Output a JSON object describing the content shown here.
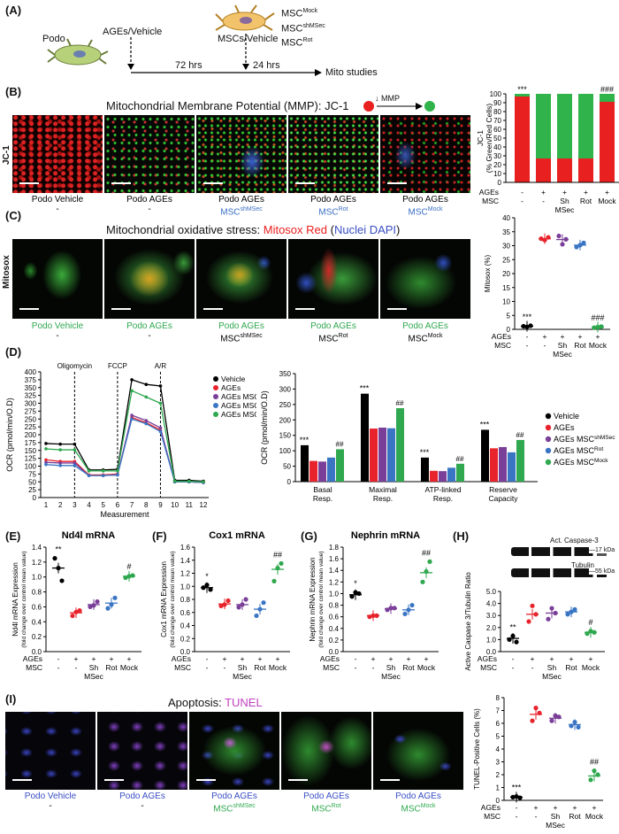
{
  "panelA": {
    "label": "(A)",
    "podo": "Podo",
    "ages_vehicle": "AGEs/Vehicle",
    "mscs_vehicle": "MSCs/Vehicle",
    "msc_mock": "MSC",
    "msc_mock_sup": "Mock",
    "msc_shmsec": "MSC",
    "msc_shmsec_sup": "shMSec",
    "msc_rot": "MSC",
    "msc_rot_sup": "Rot",
    "t72": "72 hrs",
    "t24": "24 hrs",
    "mito": "Mito studies"
  },
  "panelB": {
    "label": "(B)",
    "title": "Mitochondrial Membrane Potential (MMP): JC-1",
    "mmp": "↓ MMP",
    "side": "JC-1",
    "captions": [
      {
        "l1": "Podo Vehicle",
        "l2": "-",
        "sup": ""
      },
      {
        "l1": "Podo AGEs",
        "l2": "-",
        "sup": ""
      },
      {
        "l1": "Podo  AGEs",
        "l2": "MSC",
        "sup": "shMSec"
      },
      {
        "l1": "Podo AGEs",
        "l2": "MSC",
        "sup": "Rot"
      },
      {
        "l1": "Podo AGEs",
        "l2": "MSC",
        "sup": "Mock"
      }
    ]
  },
  "panelC": {
    "label": "(C)",
    "title_a": "Mitochondrial oxidative stress: ",
    "title_b": "Mitosox Red",
    "title_c": " (",
    "title_d": "Nuclei DAPI",
    "title_e": ")",
    "side": "Mitosox",
    "captions": [
      {
        "l1": "Podo Vehicle",
        "l2": "-",
        "sup": ""
      },
      {
        "l1": "Podo AGEs",
        "l2": "-",
        "sup": ""
      },
      {
        "l1": "Podo  AGEs",
        "l2": "MSC",
        "sup": "shMSec"
      },
      {
        "l1": "Podo AGEs",
        "l2": "MSC",
        "sup": "Rot"
      },
      {
        "l1": "Podo AGEs",
        "l2": "MSC",
        "sup": "Mock"
      }
    ]
  },
  "panelI": {
    "label": "(I)",
    "title_a": "Apoptosis: ",
    "title_b": "TUNEL",
    "captions": [
      {
        "l1": "Podo Vehicle",
        "l2": "-",
        "sup": ""
      },
      {
        "l1": "Podo AGEs",
        "l2": "-",
        "sup": ""
      },
      {
        "l1": "Podo  AGEs",
        "l2": "MSC",
        "sup": "shMSec"
      },
      {
        "l1": "Podo AGEs",
        "l2": "MSC",
        "sup": "Rot"
      },
      {
        "l1": "Podo AGEs",
        "l2": "MSC",
        "sup": "Mock"
      }
    ]
  },
  "panelD": {
    "label": "(D)"
  },
  "panelE": {
    "label": "(E)"
  },
  "panelF": {
    "label": "(F)"
  },
  "panelG": {
    "label": "(G)"
  },
  "panelH": {
    "label": "(H)",
    "blot1": "Act. Caspase-3",
    "blot1_kda": "17 kDa",
    "blot2": "Tubulin",
    "blot2_kda": "55 kDa"
  },
  "groups": {
    "ages_row": [
      "-",
      "+",
      "+",
      "+",
      "+"
    ],
    "msc_row": [
      "-",
      "-",
      "Sh",
      "Rot",
      "Mock"
    ],
    "row_ages_label": "AGEs",
    "row_msc_label": "MSC",
    "msec": "MSec"
  },
  "colors": {
    "vehicle": "#000000",
    "ages": "#e8232b",
    "shmsec": "#7a3f98",
    "rot": "#3a75c4",
    "mock": "#2fa84f",
    "jc_red": "#e82020",
    "jc_green": "#2fb34a"
  },
  "chart_data": [
    {
      "id": "B",
      "type": "bar",
      "stacked": true,
      "ylabel": "JC-1 (% Green/Red Cells)",
      "ylim": [
        0,
        100
      ],
      "yticks": [
        0,
        10,
        20,
        30,
        40,
        50,
        60,
        70,
        80,
        90,
        100
      ],
      "series": [
        {
          "name": "Red",
          "values": [
            97,
            27,
            27,
            27,
            91
          ]
        },
        {
          "name": "Green",
          "values": [
            3,
            73,
            73,
            73,
            9
          ]
        }
      ],
      "annotations": [
        {
          "group": 0,
          "text": "***"
        },
        {
          "group": 4,
          "text": "###"
        }
      ]
    },
    {
      "id": "C",
      "type": "scatter",
      "ylabel": "Mitosox (%)",
      "ylim": [
        0,
        40
      ],
      "yticks": [
        0,
        5,
        10,
        15,
        20,
        25,
        30,
        35,
        40
      ],
      "points": [
        [
          1.1,
          0.9,
          1.3
        ],
        [
          32.5,
          32,
          33
        ],
        [
          33.5,
          30.5,
          32.3
        ],
        [
          29.5,
          30.2,
          31
        ]
      ],
      "means": [
        1.1,
        32.5,
        32.2,
        30.2,
        0.8
      ],
      "extra_points_mock": [
        0.6,
        0.8,
        1.0
      ],
      "annotations": [
        {
          "group": 0,
          "text": "***"
        },
        {
          "group": 4,
          "text": "###"
        }
      ]
    },
    {
      "id": "D1",
      "type": "line",
      "xlabel": "Measurement",
      "ylabel": "OCR (pmol/min/O.D)",
      "xlim": [
        1,
        12
      ],
      "ylim": [
        0,
        400
      ],
      "yticks": [
        0,
        25,
        50,
        75,
        100,
        125,
        150,
        175,
        200,
        225,
        250,
        275,
        300,
        325,
        350,
        375,
        400
      ],
      "x": [
        1,
        2,
        3,
        4,
        5,
        6,
        7,
        8,
        9,
        10,
        11,
        12
      ],
      "injections": [
        {
          "x": 3,
          "label": "Oligomycin"
        },
        {
          "x": 6,
          "label": "FCCP"
        },
        {
          "x": 9,
          "label": "A/R"
        }
      ],
      "series": [
        {
          "name": "Vehicle",
          "values": [
            172,
            170,
            170,
            88,
            88,
            90,
            375,
            360,
            355,
            55,
            55,
            52
          ]
        },
        {
          "name": "AGEs",
          "values": [
            120,
            115,
            115,
            72,
            72,
            75,
            255,
            238,
            215,
            50,
            50,
            48
          ]
        },
        {
          "name": "AGEs MSCshMSec",
          "values": [
            112,
            110,
            110,
            70,
            70,
            72,
            262,
            245,
            222,
            50,
            50,
            48
          ]
        },
        {
          "name": "AGEs MSCRot",
          "values": [
            105,
            102,
            102,
            70,
            70,
            72,
            250,
            235,
            210,
            50,
            50,
            48
          ]
        },
        {
          "name": "AGEs MSCMock",
          "values": [
            155,
            152,
            152,
            85,
            85,
            85,
            340,
            320,
            300,
            52,
            52,
            50
          ]
        }
      ]
    },
    {
      "id": "D2",
      "type": "bar",
      "ylabel": "OCR (pmol/min/O.D)",
      "ylim": [
        0,
        350
      ],
      "yticks": [
        0,
        50,
        100,
        150,
        200,
        250,
        300,
        350
      ],
      "categories": [
        "Basal Resp.",
        "Maximal Resp.",
        "ATP-linked Resp.",
        "Reserve Capacity"
      ],
      "series": [
        {
          "name": "Vehicle",
          "values": [
            118,
            285,
            78,
            168
          ]
        },
        {
          "name": "AGEs",
          "values": [
            67,
            172,
            35,
            108
          ]
        },
        {
          "name": "AGEs MSCshMSec",
          "values": [
            65,
            175,
            34,
            112
          ]
        },
        {
          "name": "AGEs MSCRot",
          "values": [
            78,
            173,
            45,
            95
          ]
        },
        {
          "name": "AGEs MSCMock",
          "values": [
            105,
            238,
            58,
            135
          ]
        }
      ],
      "annotations": [
        "***",
        "##",
        "***",
        "##",
        "***",
        "##",
        "***",
        "##"
      ]
    },
    {
      "id": "E",
      "type": "scatter",
      "title": "Nd4l mRNA",
      "ylabel": "Nd4l mRNA Expression",
      "ylabel2": "(fold change over control mean value)",
      "ylim": [
        0.0,
        1.4
      ],
      "yticks": [
        0.0,
        0.2,
        0.4,
        0.6,
        0.8,
        1.0,
        1.2,
        1.4
      ],
      "points": [
        [
          1.25,
          1.12,
          0.95
        ],
        [
          0.48,
          0.53,
          0.55
        ],
        [
          0.6,
          0.62,
          0.67
        ],
        [
          0.58,
          0.63,
          0.72
        ],
        [
          0.99,
          1.01,
          1.02
        ]
      ],
      "means": [
        1.12,
        0.52,
        0.63,
        0.65,
        1.01
      ],
      "annotations": [
        {
          "group": 0,
          "text": "**"
        },
        {
          "group": 4,
          "text": "#"
        }
      ]
    },
    {
      "id": "F",
      "type": "scatter",
      "title": "Cox1 mRNA",
      "ylabel": "Cox1 mRNA Expression",
      "ylabel2": "(fold change over control mean value)",
      "ylim": [
        0.0,
        1.6
      ],
      "yticks": [
        0.0,
        0.2,
        0.4,
        0.6,
        0.8,
        1.0,
        1.2,
        1.4,
        1.6
      ],
      "points": [
        [
          0.98,
          1.02,
          0.95
        ],
        [
          0.7,
          0.72,
          0.78
        ],
        [
          0.68,
          0.72,
          0.8
        ],
        [
          0.55,
          0.65,
          0.75
        ],
        [
          1.08,
          1.28,
          1.35
        ]
      ],
      "means": [
        0.98,
        0.73,
        0.72,
        0.65,
        1.26
      ],
      "annotations": [
        {
          "group": 0,
          "text": "*"
        },
        {
          "group": 4,
          "text": "##"
        }
      ]
    },
    {
      "id": "G",
      "type": "scatter",
      "title": "Nephrin mRNA",
      "ylabel": "Nephrin mRNA Expression",
      "ylabel2": "(fold change over control mean value)",
      "ylim": [
        0.0,
        1.8
      ],
      "yticks": [
        0.0,
        0.2,
        0.4,
        0.6,
        0.8,
        1.0,
        1.2,
        1.4,
        1.6,
        1.8
      ],
      "points": [
        [
          0.95,
          1.02,
          1.0
        ],
        [
          0.6,
          0.62,
          0.62
        ],
        [
          0.72,
          0.75,
          0.75
        ],
        [
          0.65,
          0.72,
          0.8
        ],
        [
          1.2,
          1.38,
          1.55
        ]
      ],
      "means": [
        0.98,
        0.62,
        0.74,
        0.72,
        1.36
      ],
      "annotations": [
        {
          "group": 0,
          "text": "*"
        },
        {
          "group": 4,
          "text": "##"
        }
      ]
    },
    {
      "id": "H",
      "type": "scatter",
      "ylabel": "Active Caspase 3/Tubulin Ratio",
      "ylim": [
        0.0,
        5.0
      ],
      "yticks": [
        0.0,
        1.0,
        2.0,
        3.0,
        4.0,
        5.0
      ],
      "points": [
        [
          1.0,
          1.3,
          0.8
        ],
        [
          2.5,
          3.8,
          3.1
        ],
        [
          2.7,
          3.6,
          3.2
        ],
        [
          3.1,
          3.3,
          3.5
        ],
        [
          1.5,
          1.7,
          1.6
        ]
      ],
      "means": [
        1.1,
        3.1,
        3.2,
        3.3,
        1.6
      ],
      "annotations": [
        {
          "group": 0,
          "text": "**"
        },
        {
          "group": 4,
          "text": "#"
        }
      ]
    },
    {
      "id": "I",
      "type": "scatter",
      "ylabel": "TUNEL-Positive Cells (%)",
      "ylim": [
        0,
        8
      ],
      "yticks": [
        0,
        1,
        2,
        3,
        4,
        5,
        6,
        7,
        8
      ],
      "points": [
        [
          0.25,
          0.3,
          0.2
        ],
        [
          6.2,
          7.2,
          6.8
        ],
        [
          6.2,
          6.6,
          6.5
        ],
        [
          5.8,
          6.1,
          5.7
        ],
        [
          1.6,
          2.3,
          2.0
        ]
      ],
      "means": [
        0.25,
        6.7,
        6.4,
        5.9,
        1.9
      ],
      "annotations": [
        {
          "group": 0,
          "text": "***"
        },
        {
          "group": 4,
          "text": "##"
        }
      ]
    }
  ]
}
